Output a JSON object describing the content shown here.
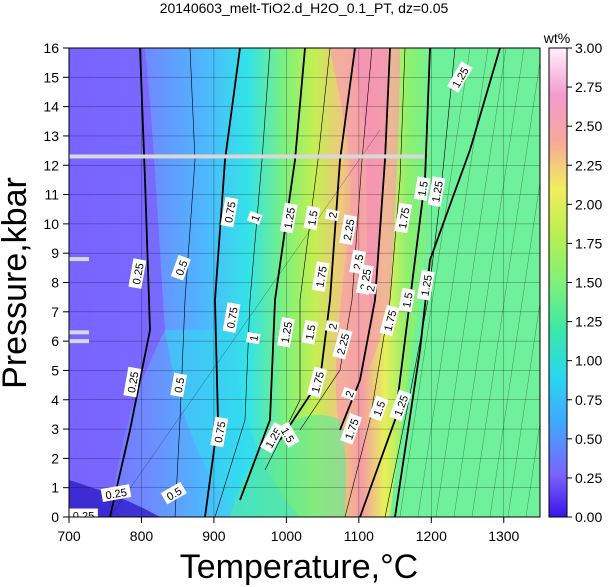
{
  "chart_data": {
    "type": "heatmap",
    "title": "20140603_melt-TiO2.d_H2O_0.1_PT, dz=0.05",
    "xlabel": "Temperature,°C",
    "ylabel": "Pressure,kbar",
    "xlim": [
      700,
      1350
    ],
    "ylim": [
      0,
      16
    ],
    "x_ticks": [
      700,
      800,
      900,
      1000,
      1100,
      1200,
      1300
    ],
    "y_ticks": [
      0,
      1,
      2,
      3,
      4,
      5,
      6,
      7,
      8,
      9,
      10,
      11,
      12,
      13,
      14,
      15,
      16
    ],
    "grid": true,
    "colorbar": {
      "label": "wt%",
      "range": [
        0.0,
        3.0
      ],
      "ticks": [
        "0.00",
        "0.25",
        "0.50",
        "0.75",
        "1.00",
        "1.25",
        "1.50",
        "1.75",
        "2.00",
        "2.25",
        "2.50",
        "2.75",
        "3.00"
      ]
    },
    "contour_levels": [
      0.25,
      0.5,
      0.75,
      1.0,
      1.25,
      1.5,
      1.75,
      2.0,
      2.25,
      2.5,
      2.75
    ],
    "contour_labels": [
      {
        "text": "0.25",
        "x": 795,
        "y": 8.3,
        "rot": 80
      },
      {
        "text": "0.5",
        "x": 855,
        "y": 8.5,
        "rot": 70
      },
      {
        "text": "0.75",
        "x": 922,
        "y": 10.4,
        "rot": 80
      },
      {
        "text": "1",
        "x": 957,
        "y": 10.2,
        "rot": 70
      },
      {
        "text": "1.25",
        "x": 1004,
        "y": 10.2,
        "rot": 80
      },
      {
        "text": "1.5",
        "x": 1036,
        "y": 10.2,
        "rot": 80
      },
      {
        "text": "2",
        "x": 1064,
        "y": 10.3,
        "rot": 80
      },
      {
        "text": "2.25",
        "x": 1086,
        "y": 9.8,
        "rot": 80
      },
      {
        "text": "2.5",
        "x": 1099,
        "y": 8.7,
        "rot": 80
      },
      {
        "text": "2.25",
        "x": 1109,
        "y": 8.1,
        "rot": 80
      },
      {
        "text": "2",
        "x": 1116,
        "y": 7.8,
        "rot": 80
      },
      {
        "text": "1.75",
        "x": 1048,
        "y": 8.2,
        "rot": 80
      },
      {
        "text": "0.75",
        "x": 925,
        "y": 6.8,
        "rot": 80
      },
      {
        "text": "1",
        "x": 955,
        "y": 6.1,
        "rot": 80
      },
      {
        "text": "1.25",
        "x": 1000,
        "y": 6.3,
        "rot": 80
      },
      {
        "text": "1.5",
        "x": 1033,
        "y": 6.3,
        "rot": 80
      },
      {
        "text": "2",
        "x": 1064,
        "y": 6.5,
        "rot": 80
      },
      {
        "text": "2.25",
        "x": 1078,
        "y": 5.9,
        "rot": 75
      },
      {
        "text": "1.75",
        "x": 1143,
        "y": 6.7,
        "rot": 75
      },
      {
        "text": "1.5",
        "x": 1167,
        "y": 7.4,
        "rot": 80
      },
      {
        "text": "1.25",
        "x": 1193,
        "y": 7.9,
        "rot": 80
      },
      {
        "text": "1.75",
        "x": 1162,
        "y": 10.2,
        "rot": 80
      },
      {
        "text": "1.5",
        "x": 1188,
        "y": 11.2,
        "rot": 80
      },
      {
        "text": "1.25",
        "x": 1208,
        "y": 11.1,
        "rot": 80
      },
      {
        "text": "1.25",
        "x": 1240,
        "y": 15.0,
        "rot": 60
      },
      {
        "text": "1.75",
        "x": 1043,
        "y": 4.6,
        "rot": 75
      },
      {
        "text": "2",
        "x": 1087,
        "y": 4.2,
        "rot": 70
      },
      {
        "text": "1.5",
        "x": 1128,
        "y": 3.7,
        "rot": 70
      },
      {
        "text": "1.25",
        "x": 1158,
        "y": 3.8,
        "rot": 70
      },
      {
        "text": "1.75",
        "x": 1090,
        "y": 3.0,
        "rot": 70
      },
      {
        "text": "0.25",
        "x": 788,
        "y": 4.6,
        "rot": 80
      },
      {
        "text": "0.5",
        "x": 852,
        "y": 4.5,
        "rot": 80
      },
      {
        "text": "0.75",
        "x": 908,
        "y": 2.9,
        "rot": 80
      },
      {
        "text": "1.25",
        "x": 982,
        "y": 2.7,
        "rot": 60
      },
      {
        "text": "1.5",
        "x": 1002,
        "y": 2.8,
        "rot": -60
      },
      {
        "text": "0.25",
        "x": 765,
        "y": 0.8,
        "rot": 10
      },
      {
        "text": "0.5",
        "x": 845,
        "y": 0.8,
        "rot": 30
      },
      {
        "text": "0.25",
        "x": 720,
        "y": 0.05,
        "rot": 0
      }
    ],
    "grey_bands_kbar": [
      12.3,
      8.8,
      6.3,
      6.0
    ]
  }
}
